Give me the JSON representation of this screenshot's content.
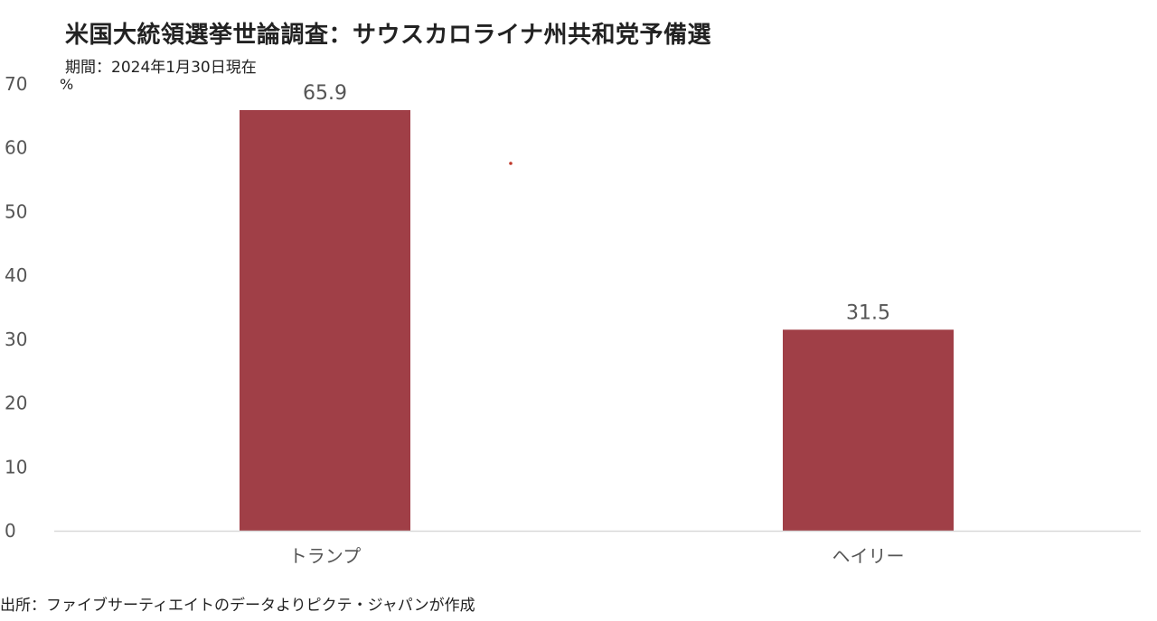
{
  "chart_data": {
    "type": "bar",
    "title": "米国大統領選挙世論調査：サウスカロライナ州共和党予備選",
    "subtitle": "期間：2024年1月30日現在",
    "unit_label": "%",
    "source": "出所：ファイブサーティエイトのデータよりピクテ・ジャパンが作成",
    "categories": [
      "トランプ",
      "ヘイリー"
    ],
    "values": [
      65.9,
      31.5
    ],
    "data_labels": [
      "65.9",
      "31.5"
    ],
    "ylim": [
      0,
      70
    ],
    "yticks": [
      0,
      10,
      20,
      30,
      40,
      50,
      60,
      70
    ],
    "bar_color": "#A03F47",
    "axis_color": "#D9D9D9",
    "grid": false,
    "legend": "none"
  }
}
